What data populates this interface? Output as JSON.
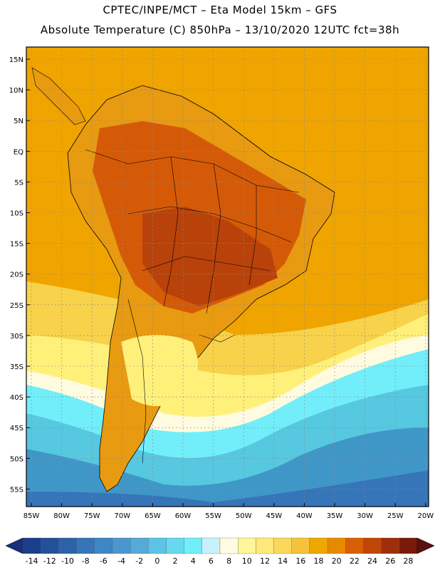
{
  "header": {
    "line1": "CPTEC/INPE/MCT –  Eta Model 15km – GFS",
    "line2": "Absolute Temperature (C) 850hPa – 13/10/2020 12UTC fct=38h"
  },
  "map": {
    "lat_labels": [
      "15N",
      "10N",
      "5N",
      "EQ",
      "5S",
      "10S",
      "15S",
      "20S",
      "25S",
      "30S",
      "35S",
      "40S",
      "45S",
      "50S",
      "55S"
    ],
    "lon_labels": [
      "85W",
      "80W",
      "75W",
      "70W",
      "65W",
      "60W",
      "55W",
      "50W",
      "45W",
      "40W",
      "35W",
      "30W",
      "25W",
      "20W"
    ],
    "colors": {
      "background": "#f0a400",
      "land_hot": "#d45a08",
      "land_hotter": "#b8420a",
      "coast": "#000000"
    }
  },
  "legend": {
    "labels": [
      "-14",
      "-12",
      "-10",
      "-8",
      "-6",
      "-4",
      "-2",
      "0",
      "2",
      "4",
      "6",
      "8",
      "10",
      "12",
      "14",
      "16",
      "18",
      "20",
      "22",
      "24",
      "26",
      "28"
    ],
    "colors": [
      "#1a3d8c",
      "#235199",
      "#2b62a8",
      "#3575b8",
      "#3f86c4",
      "#4a97cf",
      "#56aad8",
      "#5bc4e6",
      "#66d8ef",
      "#72eefa",
      "#c8f2fb",
      "#fffbe0",
      "#fff59a",
      "#ffe97a",
      "#fbd85a",
      "#f4c33c",
      "#f0a800",
      "#e88a00",
      "#d95f05",
      "#c04506",
      "#9e2f0a",
      "#7a1a0a"
    ],
    "under_color": "#1a2f7a",
    "over_color": "#5c1010"
  }
}
